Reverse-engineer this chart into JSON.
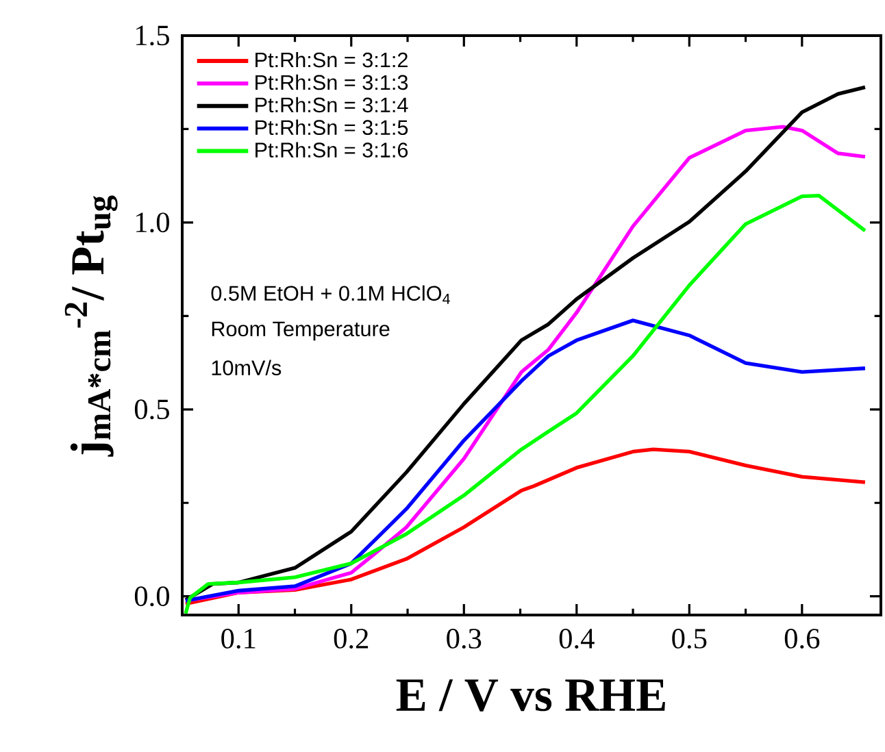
{
  "chart_data": {
    "type": "line",
    "xlabel": "E / V vs RHE",
    "ylabel": "j$_{mA*cm}$$^{-2}$/ Pt$_{ug}$",
    "xlim": [
      0.05,
      0.67
    ],
    "ylim": [
      -0.05,
      1.5
    ],
    "xticks": [
      0.1,
      0.2,
      0.3,
      0.4,
      0.5,
      0.6
    ],
    "yticks": [
      {
        "value": 0,
        "label": "0.0"
      },
      0.5,
      {
        "value": 1,
        "label": "1.0"
      },
      1.5
    ],
    "legend": "top left",
    "grid": false,
    "annotations": [
      "0.5M EtOH + 0.1M HClO$_{4}$",
      "Room Temperature",
      "10mV/s"
    ],
    "series": [
      {
        "name": "Pt:Rh:Sn = 3:1:2",
        "color": "#ff0000",
        "x": [
          0.053,
          0.1,
          0.15,
          0.2,
          0.249,
          0.3,
          0.351,
          0.362,
          0.4,
          0.45,
          0.468,
          0.5,
          0.55,
          0.6,
          0.656
        ],
        "values": [
          -0.02,
          0.01,
          0.017,
          0.045,
          0.1,
          0.185,
          0.283,
          0.295,
          0.344,
          0.387,
          0.393,
          0.387,
          0.35,
          0.32,
          0.305
        ]
      },
      {
        "name": "Pt:Rh:Sn = 3:1:3",
        "color": "#ff00ff",
        "x": [
          0.053,
          0.1,
          0.15,
          0.2,
          0.22,
          0.249,
          0.3,
          0.351,
          0.375,
          0.4,
          0.45,
          0.5,
          0.55,
          0.583,
          0.6,
          0.632,
          0.656
        ],
        "values": [
          -0.012,
          0.01,
          0.02,
          0.063,
          0.112,
          0.185,
          0.368,
          0.6,
          0.66,
          0.759,
          0.99,
          1.173,
          1.246,
          1.256,
          1.246,
          1.185,
          1.176
        ]
      },
      {
        "name": "Pt:Rh:Sn = 3:1:4",
        "color": "#000000",
        "x": [
          0.053,
          0.077,
          0.1,
          0.15,
          0.2,
          0.249,
          0.3,
          0.351,
          0.375,
          0.4,
          0.45,
          0.5,
          0.55,
          0.6,
          0.632,
          0.656
        ],
        "values": [
          -0.01,
          0.033,
          0.037,
          0.076,
          0.173,
          0.332,
          0.515,
          0.685,
          0.728,
          0.795,
          0.905,
          1.002,
          1.137,
          1.295,
          1.344,
          1.362
        ]
      },
      {
        "name": "Pt:Rh:Sn = 3:1:5",
        "color": "#0000ff",
        "x": [
          0.053,
          0.1,
          0.15,
          0.2,
          0.249,
          0.3,
          0.351,
          0.375,
          0.4,
          0.45,
          0.5,
          0.55,
          0.6,
          0.656
        ],
        "values": [
          -0.012,
          0.015,
          0.027,
          0.088,
          0.234,
          0.417,
          0.576,
          0.643,
          0.685,
          0.738,
          0.698,
          0.624,
          0.6,
          0.61
        ]
      },
      {
        "name": "Pt:Rh:Sn = 3:1:6",
        "color": "#00ff00",
        "x": [
          0.053,
          0.057,
          0.073,
          0.1,
          0.15,
          0.2,
          0.249,
          0.3,
          0.351,
          0.375,
          0.4,
          0.45,
          0.5,
          0.55,
          0.6,
          0.615,
          0.656
        ],
        "values": [
          -0.046,
          -0.004,
          0.033,
          0.037,
          0.051,
          0.088,
          0.167,
          0.27,
          0.393,
          0.441,
          0.49,
          0.643,
          0.832,
          0.996,
          1.07,
          1.072,
          0.978
        ]
      }
    ]
  }
}
